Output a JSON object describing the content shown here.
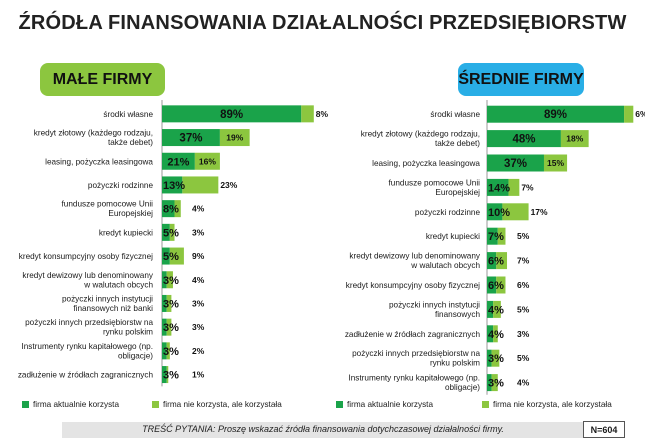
{
  "title": "ŹRÓDŁA FINANSOWANIA DZIAŁALNOŚCI PRZEDSIĘBIORSTW",
  "colors": {
    "current": "#1aa34a",
    "considered": "#8cc63f",
    "small_badge": "#8cc63f",
    "medium_badge": "#29aee6"
  },
  "legend": {
    "current": "firma aktualnie korzysta",
    "considered": "firma nie korzysta, ale korzystała"
  },
  "footer": {
    "note": "TREŚĆ PYTANIA: Proszę wskazać źródła finansowania dotychczasowej działalności firmy.",
    "n": "N=604"
  },
  "chart_data": [
    {
      "type": "bar",
      "title": "MAŁE FIRMY",
      "stacked": true,
      "categories": [
        "środki własne",
        "kredyt złotowy (każdego rodzaju,\ntakże debet)",
        "leasing, pożyczka leasingowa",
        "pożyczki rodzinne",
        "fundusze pomocowe Unii\nEuropejskiej",
        "kredyt kupiecki",
        "kredyt konsumpcyjny osoby fizycznej",
        "kredyt dewizowy lub denominowany\nw walutach obcych",
        "pożyczki innych instytucji\nfinansowych niż banki",
        "pożyczki innych przedsiębiorstw na\nrynku polskim",
        "Instrumenty rynku kapitałowego (np.\nobligacje)",
        "zadłużenie w źródłach zagranicznych"
      ],
      "series": [
        {
          "name": "firma aktualnie korzysta",
          "values": [
            89,
            37,
            21,
            13,
            8,
            5,
            5,
            3,
            3,
            3,
            3,
            3
          ]
        },
        {
          "name": "firma nie korzysta, ale korzystała",
          "values": [
            8,
            19,
            16,
            23,
            4,
            3,
            9,
            4,
            3,
            3,
            2,
            1
          ]
        }
      ],
      "labels": [
        [
          "89%",
          "8%"
        ],
        [
          "37%",
          "19%"
        ],
        [
          "21%",
          "16%"
        ],
        [
          "13%",
          "23%"
        ],
        [
          "8%",
          "4%"
        ],
        [
          "5%",
          "3%"
        ],
        [
          "5%",
          "9%"
        ],
        [
          "3%",
          "4%"
        ],
        [
          "3%",
          "3%"
        ],
        [
          "3%",
          "3%"
        ],
        [
          "3%",
          "2%"
        ],
        [
          "3%",
          "1%"
        ]
      ],
      "xlim": [
        0,
        100
      ]
    },
    {
      "type": "bar",
      "title": "ŚREDNIE FIRMY",
      "stacked": true,
      "categories": [
        "środki własne",
        "kredyt złotowy (każdego rodzaju,\ntakże debet)",
        "leasing, pożyczka leasingowa",
        "fundusze pomocowe Unii\nEuropejskiej",
        "pożyczki rodzinne",
        "kredyt kupiecki",
        "kredyt dewizowy lub denominowany\nw walutach obcych",
        "kredyt konsumpcyjny osoby fizycznej",
        "pożyczki innych instytucji\nfinansowych",
        "zadłużenie w źródłach zagranicznych",
        "pożyczki innych przedsiębiorstw na\nrynku polskim",
        "Instrumenty rynku kapitałowego (np.\nobligacje)"
      ],
      "series": [
        {
          "name": "firma aktualnie korzysta",
          "values": [
            89,
            48,
            37,
            14,
            10,
            7,
            6,
            6,
            4,
            4,
            3,
            3
          ]
        },
        {
          "name": "firma nie korzysta, ale korzystała",
          "values": [
            6,
            18,
            15,
            7,
            17,
            5,
            7,
            6,
            5,
            3,
            5,
            4
          ]
        }
      ],
      "labels": [
        [
          "89%",
          "6%"
        ],
        [
          "48%",
          "18%"
        ],
        [
          "37%",
          "15%"
        ],
        [
          "14%",
          "7%"
        ],
        [
          "10%",
          "17%"
        ],
        [
          "7%",
          "5%"
        ],
        [
          "6%",
          "7%"
        ],
        [
          "6%",
          "6%"
        ],
        [
          "4%",
          "5%"
        ],
        [
          "4%",
          "3%"
        ],
        [
          "3%",
          "5%"
        ],
        [
          "3%",
          "4%"
        ]
      ],
      "xlim": [
        0,
        100
      ]
    }
  ]
}
